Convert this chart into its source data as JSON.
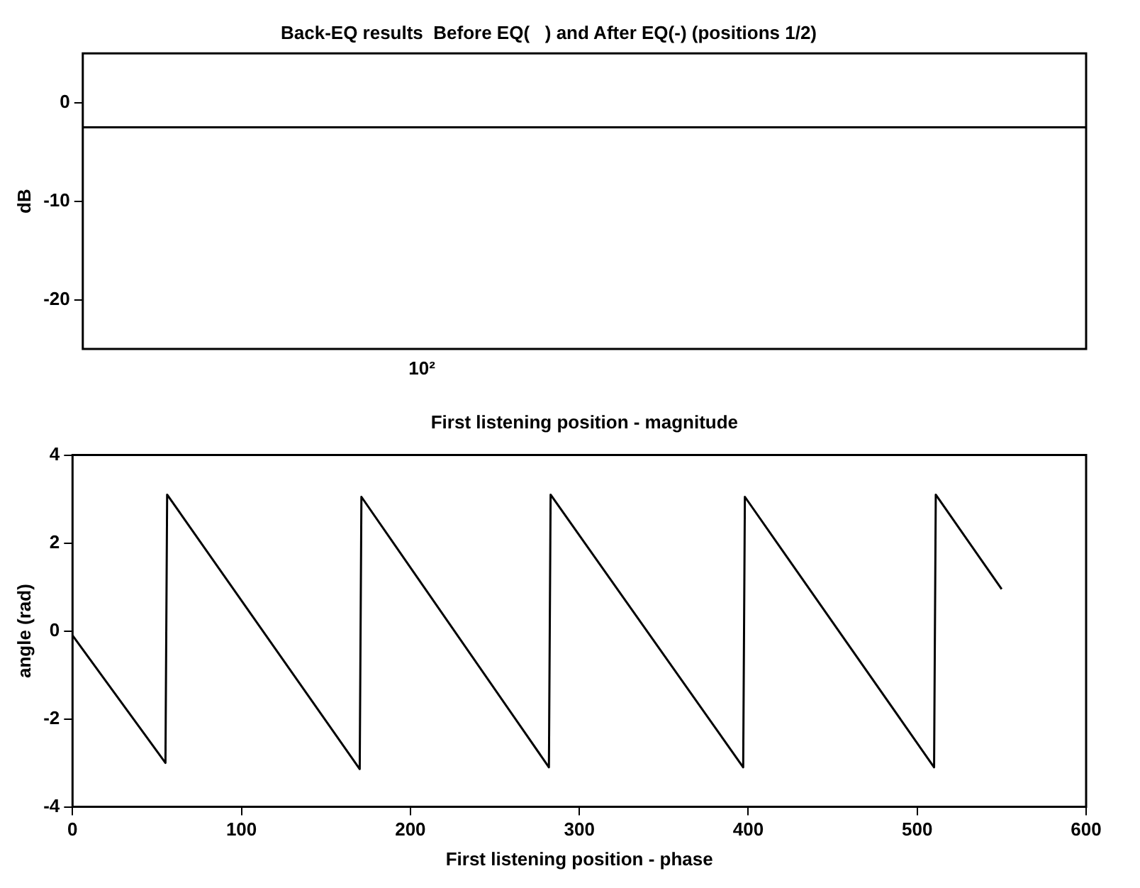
{
  "chart_data": [
    {
      "type": "line",
      "title": "Back-EQ results  Before EQ(   ) and After EQ(-) (positions 1/2)",
      "xlabel": "First listening position - magnitude",
      "ylabel": "dB",
      "annotations": [
        "10²"
      ],
      "categories": [
        null,
        null
      ],
      "ref_lines": [
        {
          "axis": "y",
          "value": -2.5,
          "color": "#000000",
          "line_style": "solid"
        }
      ],
      "ylim": [
        -25,
        5
      ],
      "yticks": [
        -20,
        -10,
        0
      ]
    },
    {
      "type": "line",
      "xlabel": "First listening position - phase",
      "ylabel": "angle (rad)",
      "series": [
        {
          "color": "#000000",
          "x": [
            0,
            55,
            56,
            170,
            171,
            282,
            283,
            397,
            398,
            510,
            511,
            550
          ],
          "values": [
            -0.1,
            -3.0,
            3.1,
            -3.14,
            3.05,
            -3.1,
            3.1,
            -3.1,
            3.05,
            -3.1,
            3.1,
            0.95
          ]
        }
      ],
      "xlim": [
        0,
        600
      ],
      "xticks": [
        0,
        100,
        200,
        300,
        400,
        500,
        600
      ],
      "ylim": [
        -4,
        4
      ],
      "yticks": [
        -4,
        -2,
        0,
        2,
        4
      ]
    }
  ]
}
